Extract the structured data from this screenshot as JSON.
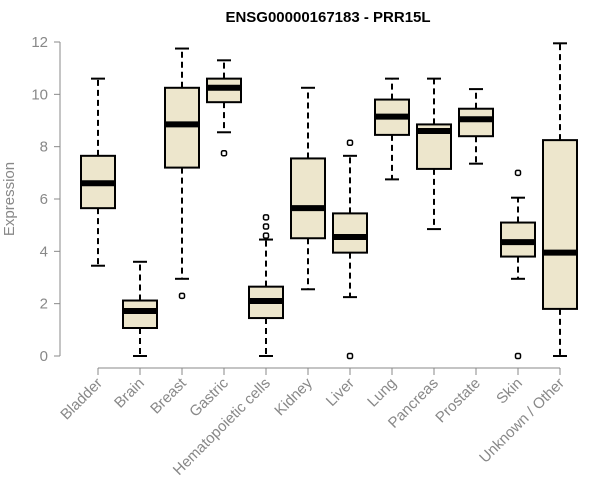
{
  "chart_data": {
    "type": "box",
    "title": "ENSG00000167183 - PRR15L",
    "xlabel": "",
    "ylabel": "Expression",
    "ylim": [
      0,
      12
    ],
    "yticks": [
      "0",
      "2",
      "4",
      "6",
      "8",
      "10",
      "12"
    ],
    "categories": [
      "Bladder",
      "Brain",
      "Breast",
      "Gastric",
      "Hematopoietic cells",
      "Kidney",
      "Liver",
      "Lung",
      "Pancreas",
      "Prostate",
      "Skin",
      "Unknown / Other"
    ],
    "boxes": [
      {
        "label": "Bladder",
        "min": 3.45,
        "q1": 5.65,
        "median": 6.6,
        "q3": 7.65,
        "max": 10.6,
        "outliers": []
      },
      {
        "label": "Brain",
        "min": 0.0,
        "q1": 1.07,
        "median": 1.72,
        "q3": 2.12,
        "max": 3.6,
        "outliers": []
      },
      {
        "label": "Breast",
        "min": 2.95,
        "q1": 7.2,
        "median": 8.85,
        "q3": 10.25,
        "max": 11.75,
        "outliers": [
          2.3
        ]
      },
      {
        "label": "Gastric",
        "min": 8.55,
        "q1": 9.7,
        "median": 10.25,
        "q3": 10.6,
        "max": 11.3,
        "outliers": [
          7.75
        ]
      },
      {
        "label": "Hematopoietic cells",
        "min": 0.0,
        "q1": 1.45,
        "median": 2.1,
        "q3": 2.65,
        "max": 4.45,
        "outliers": [
          4.6,
          4.95,
          5.3
        ]
      },
      {
        "label": "Kidney",
        "min": 2.55,
        "q1": 4.5,
        "median": 5.65,
        "q3": 7.55,
        "max": 10.25,
        "outliers": []
      },
      {
        "label": "Liver",
        "min": 2.25,
        "q1": 3.95,
        "median": 4.55,
        "q3": 5.45,
        "max": 7.65,
        "outliers": [
          8.15,
          0.0
        ]
      },
      {
        "label": "Lung",
        "min": 6.75,
        "q1": 8.45,
        "median": 9.15,
        "q3": 9.8,
        "max": 10.6,
        "outliers": []
      },
      {
        "label": "Pancreas",
        "min": 4.85,
        "q1": 7.15,
        "median": 8.6,
        "q3": 8.85,
        "max": 10.6,
        "outliers": []
      },
      {
        "label": "Prostate",
        "min": 7.35,
        "q1": 8.4,
        "median": 9.05,
        "q3": 9.45,
        "max": 10.2,
        "outliers": []
      },
      {
        "label": "Skin",
        "min": 2.95,
        "q1": 3.8,
        "median": 4.35,
        "q3": 5.1,
        "max": 6.05,
        "outliers": [
          7.0,
          0.0
        ]
      },
      {
        "label": "Unknown / Other",
        "min": 0.0,
        "q1": 1.8,
        "median": 3.95,
        "q3": 8.25,
        "max": 11.95,
        "outliers": []
      }
    ],
    "colors": {
      "box_fill": "#ede6cc",
      "box_stroke": "#000000",
      "axis": "#888888"
    }
  }
}
